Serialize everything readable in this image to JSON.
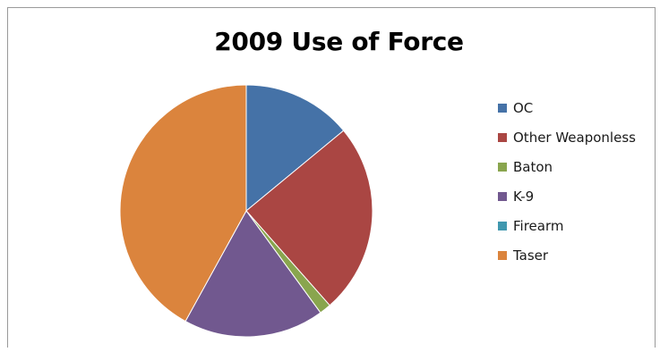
{
  "chart_data": {
    "type": "pie",
    "title": "2009 Use of Force",
    "legend_position": "right",
    "categories": [
      "OC",
      "Other Weaponless",
      "Baton",
      "K-9",
      "Firearm",
      "Taser"
    ],
    "values": [
      14,
      24.5,
      1.5,
      18,
      0,
      42
    ],
    "colors": [
      "#4572A7",
      "#AA4643",
      "#89A54E",
      "#71588F",
      "#4198AF",
      "#DB843D"
    ]
  }
}
